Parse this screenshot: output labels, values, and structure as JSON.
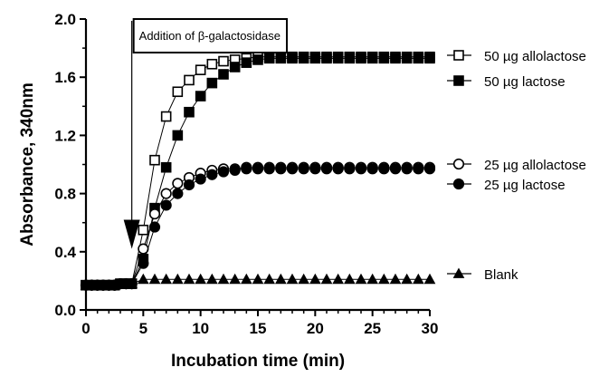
{
  "chart_data": {
    "type": "line",
    "title": "",
    "xlabel": "Incubation time (min)",
    "ylabel": "Absorbance, 340nm",
    "xlim": [
      0,
      30
    ],
    "ylim": [
      0.0,
      2.0
    ],
    "x_ticks": [
      "0",
      "5",
      "10",
      "15",
      "20",
      "25",
      "30"
    ],
    "y_ticks": [
      "0.0",
      "0.4",
      "0.8",
      "1.2",
      "1.6",
      "2.0"
    ],
    "grid": false,
    "legend_position": "right",
    "annotation": {
      "text": "Addition of β-galactosidase",
      "x": 4
    },
    "x": [
      0,
      0.5,
      1,
      1.5,
      2,
      2.5,
      3,
      3.5,
      4,
      5,
      6,
      7,
      8,
      9,
      10,
      11,
      12,
      13,
      14,
      15,
      16,
      17,
      18,
      19,
      20,
      21,
      22,
      23,
      24,
      25,
      26,
      27,
      28,
      29,
      30
    ],
    "series": [
      {
        "name": "50 µg allolactose",
        "marker": "square-open",
        "values": [
          0.17,
          0.17,
          0.17,
          0.17,
          0.17,
          0.17,
          0.18,
          0.18,
          0.18,
          0.55,
          1.03,
          1.33,
          1.5,
          1.58,
          1.65,
          1.69,
          1.71,
          1.72,
          1.73,
          1.74,
          1.74,
          1.74,
          1.74,
          1.74,
          1.74,
          1.74,
          1.74,
          1.74,
          1.74,
          1.74,
          1.74,
          1.74,
          1.74,
          1.74,
          1.74
        ]
      },
      {
        "name": "50 µg lactose",
        "marker": "square-filled",
        "values": [
          0.17,
          0.17,
          0.17,
          0.17,
          0.17,
          0.17,
          0.18,
          0.18,
          0.18,
          0.35,
          0.7,
          0.98,
          1.2,
          1.36,
          1.47,
          1.56,
          1.62,
          1.67,
          1.7,
          1.72,
          1.73,
          1.73,
          1.73,
          1.73,
          1.73,
          1.73,
          1.73,
          1.73,
          1.73,
          1.73,
          1.73,
          1.73,
          1.73,
          1.73,
          1.73
        ]
      },
      {
        "name": "25 µg allolactose",
        "marker": "circle-open",
        "values": [
          0.17,
          0.17,
          0.17,
          0.17,
          0.17,
          0.17,
          0.18,
          0.18,
          0.18,
          0.42,
          0.66,
          0.8,
          0.87,
          0.91,
          0.94,
          0.96,
          0.97,
          0.97,
          0.98,
          0.98,
          0.98,
          0.98,
          0.98,
          0.98,
          0.98,
          0.98,
          0.98,
          0.98,
          0.98,
          0.98,
          0.98,
          0.98,
          0.98,
          0.98,
          0.98
        ]
      },
      {
        "name": "25 µg lactose",
        "marker": "circle-filled",
        "values": [
          0.17,
          0.17,
          0.17,
          0.17,
          0.17,
          0.17,
          0.18,
          0.18,
          0.18,
          0.32,
          0.57,
          0.72,
          0.8,
          0.86,
          0.9,
          0.93,
          0.95,
          0.96,
          0.97,
          0.97,
          0.97,
          0.97,
          0.97,
          0.97,
          0.97,
          0.97,
          0.97,
          0.97,
          0.97,
          0.97,
          0.97,
          0.97,
          0.97,
          0.97,
          0.97
        ]
      },
      {
        "name": "Blank",
        "marker": "triangle-filled",
        "values": [
          0.17,
          0.17,
          0.17,
          0.17,
          0.17,
          0.17,
          0.18,
          0.18,
          0.18,
          0.21,
          0.21,
          0.21,
          0.21,
          0.21,
          0.21,
          0.21,
          0.21,
          0.21,
          0.21,
          0.21,
          0.21,
          0.21,
          0.21,
          0.21,
          0.21,
          0.21,
          0.21,
          0.21,
          0.21,
          0.21,
          0.21,
          0.21,
          0.21,
          0.21,
          0.21
        ]
      }
    ],
    "legend_groups": [
      [
        "50 µg allolactose",
        "50 µg lactose"
      ],
      [
        "25 µg allolactose",
        "25 µg lactose"
      ],
      [
        "Blank"
      ]
    ],
    "colors": {
      "line": "#000000",
      "background": "#ffffff"
    }
  }
}
